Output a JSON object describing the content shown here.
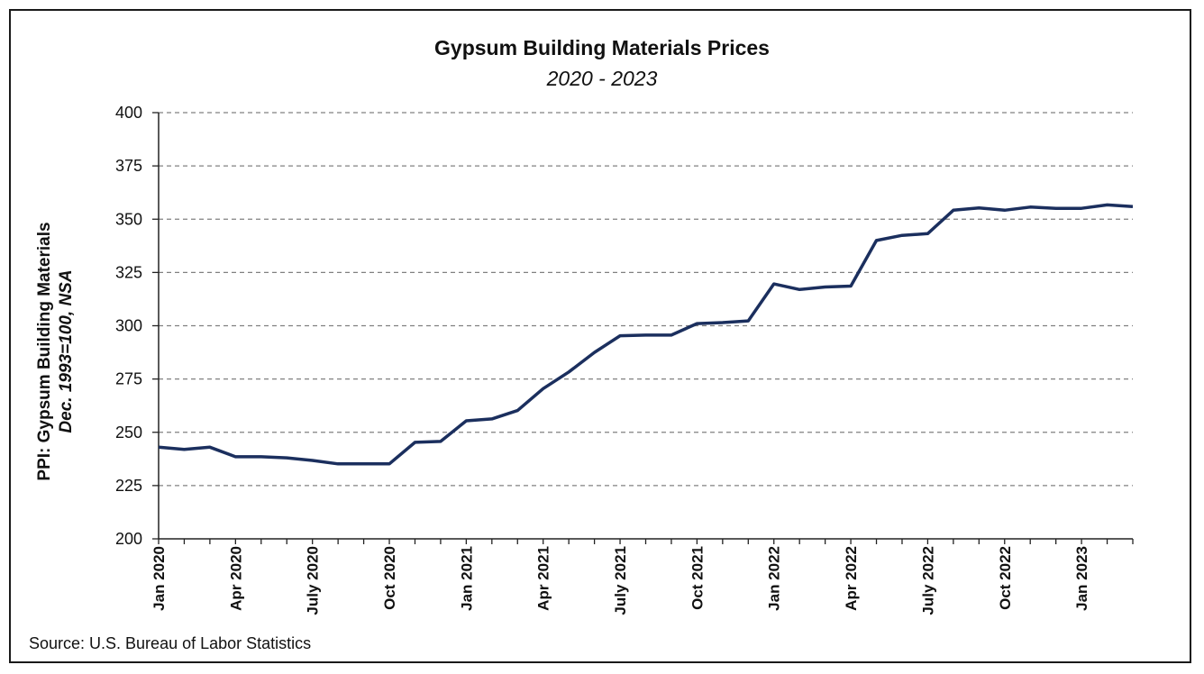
{
  "chart_data": {
    "type": "line",
    "title": "Gypsum Building Materials Prices",
    "subtitle": "2020 - 2023",
    "ylabel_line1": "PPI: Gypsum Building Materials",
    "ylabel_line2": "Dec. 1993=100, NSA",
    "xlabel": "",
    "source": "Source: U.S. Bureau of Labor Statistics",
    "ylim": [
      200,
      400
    ],
    "yticks": [
      200,
      225,
      250,
      275,
      300,
      325,
      350,
      375,
      400
    ],
    "grid": true,
    "line_color": "#1b2f5e",
    "x_tick_labels": [
      {
        "index": 0,
        "label": "Jan 2020"
      },
      {
        "index": 3,
        "label": "Apr 2020"
      },
      {
        "index": 6,
        "label": "July 2020"
      },
      {
        "index": 9,
        "label": "Oct 2020"
      },
      {
        "index": 12,
        "label": "Jan 2021"
      },
      {
        "index": 15,
        "label": "Apr 2021"
      },
      {
        "index": 18,
        "label": "July 2021"
      },
      {
        "index": 21,
        "label": "Oct 2021"
      },
      {
        "index": 24,
        "label": "Jan 2022"
      },
      {
        "index": 27,
        "label": "Apr 2022"
      },
      {
        "index": 30,
        "label": "July 2022"
      },
      {
        "index": 33,
        "label": "Oct 2022"
      },
      {
        "index": 36,
        "label": "Jan 2023"
      }
    ],
    "series": [
      {
        "values": [
          243,
          242,
          243,
          238.5,
          238.5,
          238,
          236.8,
          235.2,
          235.2,
          235.2,
          245.3,
          245.7,
          255.4,
          256.3,
          260.2,
          270.5,
          278.3,
          287.5,
          295.3,
          295.6,
          295.6,
          301,
          301.5,
          302.3,
          319.6,
          317,
          318.2,
          318.6,
          340,
          342.4,
          343.2,
          354.2,
          355.3,
          354.2,
          355.7,
          355.1,
          355.1,
          356.7,
          355.9
        ]
      }
    ]
  }
}
